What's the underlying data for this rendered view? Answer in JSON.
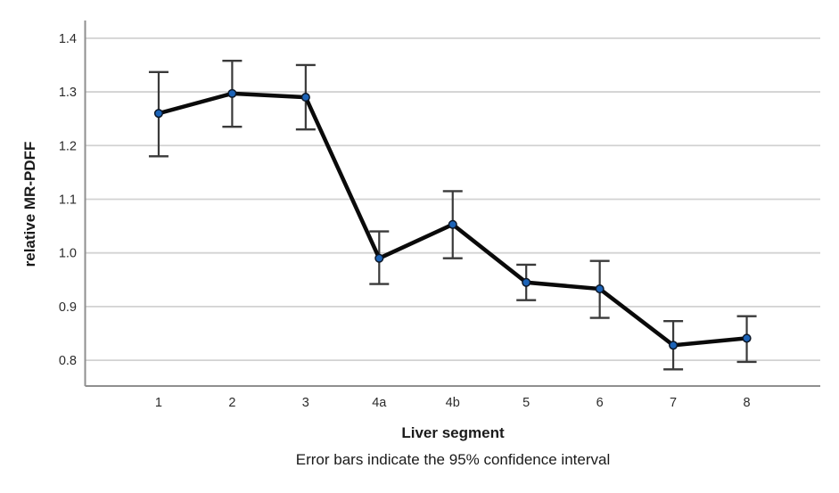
{
  "chart_data": {
    "type": "line",
    "title": "",
    "xlabel": "Liver segment",
    "ylabel": "relative MR-PDFF",
    "caption": "Error bars indicate the 95% confidence interval",
    "categories": [
      "1",
      "2",
      "3",
      "4a",
      "4b",
      "5",
      "6",
      "7",
      "8"
    ],
    "series": [
      {
        "name": "relative MR-PDFF",
        "values": [
          1.26,
          1.297,
          1.29,
          0.99,
          1.053,
          0.945,
          0.933,
          0.828,
          0.841
        ],
        "ci_low": [
          1.18,
          1.235,
          1.23,
          0.942,
          0.99,
          0.912,
          0.879,
          0.783,
          0.797
        ],
        "ci_high": [
          1.337,
          1.358,
          1.35,
          1.04,
          1.115,
          0.978,
          0.985,
          0.873,
          0.882
        ]
      }
    ],
    "error_bars": "95% confidence interval",
    "marker": "circle",
    "ylim": [
      0.752,
      1.433
    ],
    "yticks": [
      0.8,
      0.9,
      1.0,
      1.1,
      1.2,
      1.3,
      1.4
    ],
    "ytick_labels": [
      "0.8",
      "0.9",
      "1.0",
      "1.1",
      "1.2",
      "1.3",
      "1.4"
    ],
    "grid": "horizontal",
    "legend": "none",
    "colors": {
      "line": "#0a0a0a",
      "marker_fill": "#1c63b7",
      "marker_stroke": "#0b1626",
      "error_bar": "#3a3a3a",
      "gridline": "#d2d2d2",
      "axis": "#8f8f8f",
      "tick_text": "#2b2b2b"
    }
  }
}
